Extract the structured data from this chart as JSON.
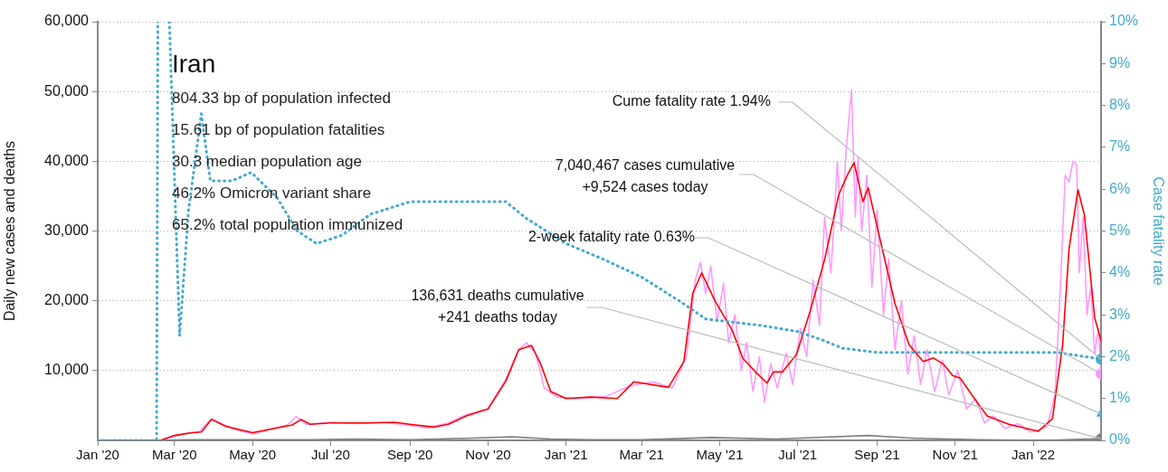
{
  "chart_data": {
    "type": "line",
    "title": "Iran",
    "xlim": [
      "2020-01-01",
      "2022-02-23"
    ],
    "xticks": [
      {
        "value": "2020-01",
        "label": "Jan '20"
      },
      {
        "value": "2020-03",
        "label": "Mar '20"
      },
      {
        "value": "2020-05",
        "label": "May '20"
      },
      {
        "value": "2020-07",
        "label": "Jul '20"
      },
      {
        "value": "2020-09",
        "label": "Sep '20"
      },
      {
        "value": "2020-11",
        "label": "Nov '20"
      },
      {
        "value": "2021-01",
        "label": "Jan '21"
      },
      {
        "value": "2021-03",
        "label": "Mar '21"
      },
      {
        "value": "2021-05",
        "label": "May '21"
      },
      {
        "value": "2021-07",
        "label": "Jul '21"
      },
      {
        "value": "2021-09",
        "label": "Sep '21"
      },
      {
        "value": "2021-11",
        "label": "Nov '21"
      },
      {
        "value": "2022-01",
        "label": "Jan '22"
      }
    ],
    "ylim": [
      0,
      60000
    ],
    "yticks": [
      {
        "value": 10000,
        "label": "10,000"
      },
      {
        "value": 20000,
        "label": "20,000"
      },
      {
        "value": 30000,
        "label": "30,000"
      },
      {
        "value": 40000,
        "label": "40,000"
      },
      {
        "value": 50000,
        "label": "50,000"
      },
      {
        "value": 60000,
        "label": "60,000"
      }
    ],
    "y2lim": [
      0,
      10
    ],
    "y2ticks": [
      {
        "value": 0,
        "label": "0%"
      },
      {
        "value": 1,
        "label": "1%"
      },
      {
        "value": 2,
        "label": "2%"
      },
      {
        "value": 3,
        "label": "3%"
      },
      {
        "value": 4,
        "label": "4%"
      },
      {
        "value": 5,
        "label": "5%"
      },
      {
        "value": 6,
        "label": "6%"
      },
      {
        "value": 7,
        "label": "7%"
      },
      {
        "value": 8,
        "label": "8%"
      },
      {
        "value": 9,
        "label": "9%"
      },
      {
        "value": 10,
        "label": "10%"
      }
    ],
    "ylabel": "Daily new cases and deaths",
    "y2label": "Case fatality rate",
    "grid": "y",
    "legend": false,
    "series": [
      {
        "type": "line",
        "color": "#ff99ff",
        "marker": "none",
        "line_style": "solid",
        "x": [
          "2020-01-01",
          "2020-02-19",
          "2020-03-01",
          "2020-03-10",
          "2020-03-20",
          "2020-03-30",
          "2020-04-08",
          "2020-04-20",
          "2020-05-02",
          "2020-05-15",
          "2020-05-28",
          "2020-06-04",
          "2020-06-12",
          "2020-07-01",
          "2020-07-20",
          "2020-08-10",
          "2020-08-25",
          "2020-09-15",
          "2020-10-01",
          "2020-10-15",
          "2020-11-01",
          "2020-11-15",
          "2020-11-25",
          "2020-12-01",
          "2020-12-08",
          "2020-12-15",
          "2020-12-25",
          "2021-01-10",
          "2021-02-01",
          "2021-02-20",
          "2021-03-10",
          "2021-03-25",
          "2021-04-05",
          "2021-04-12",
          "2021-04-16",
          "2021-04-20",
          "2021-04-24",
          "2021-04-29",
          "2021-05-04",
          "2021-05-08",
          "2021-05-13",
          "2021-05-18",
          "2021-05-22",
          "2021-05-27",
          "2021-06-01",
          "2021-06-05",
          "2021-06-10",
          "2021-06-15",
          "2021-06-22",
          "2021-06-27",
          "2021-07-03",
          "2021-07-08",
          "2021-07-13",
          "2021-07-18",
          "2021-07-22",
          "2021-07-27",
          "2021-08-01",
          "2021-08-04",
          "2021-08-08",
          "2021-08-12",
          "2021-08-15",
          "2021-08-17",
          "2021-08-20",
          "2021-08-24",
          "2021-08-28",
          "2021-09-01",
          "2021-09-06",
          "2021-09-10",
          "2021-09-15",
          "2021-09-20",
          "2021-09-25",
          "2021-09-30",
          "2021-10-05",
          "2021-10-10",
          "2021-10-16",
          "2021-10-22",
          "2021-10-27",
          "2021-11-03",
          "2021-11-10",
          "2021-11-17",
          "2021-11-24",
          "2021-12-01",
          "2021-12-10",
          "2021-12-20",
          "2021-12-30",
          "2022-01-05",
          "2022-01-12",
          "2022-01-18",
          "2022-01-22",
          "2022-01-26",
          "2022-01-29",
          "2022-02-01",
          "2022-02-04",
          "2022-02-06",
          "2022-02-09",
          "2022-02-12",
          "2022-02-15",
          "2022-02-18",
          "2022-02-21",
          "2022-02-23"
        ],
        "values": [
          0,
          0,
          600,
          1000,
          1200,
          3100,
          2300,
          1400,
          900,
          1600,
          2200,
          3400,
          2300,
          2600,
          2400,
          2600,
          2300,
          1800,
          2500,
          3700,
          4500,
          8800,
          13000,
          14000,
          12500,
          7500,
          6200,
          6000,
          6300,
          7800,
          8400,
          7500,
          12000,
          23000,
          25500,
          21000,
          25000,
          17000,
          22500,
          14000,
          18000,
          10000,
          14000,
          7000,
          12000,
          5500,
          11000,
          7500,
          12500,
          8000,
          16000,
          12000,
          23000,
          16500,
          32000,
          24000,
          40000,
          30000,
          42000,
          50200,
          32000,
          40500,
          30000,
          38000,
          22000,
          33000,
          18000,
          26000,
          13000,
          20000,
          9500,
          15000,
          8000,
          13000,
          7000,
          11500,
          6500,
          10000,
          4500,
          6000,
          2500,
          3500,
          1700,
          2400,
          1200,
          1500,
          2000,
          6500,
          21000,
          38000,
          37000,
          40000,
          39500,
          24000,
          32000,
          18000,
          22000,
          12500,
          16000,
          9524
        ]
      },
      {
        "type": "line",
        "color": "#ff0000",
        "marker": "none",
        "line_style": "solid",
        "x": [
          "2020-01-01",
          "2020-02-19",
          "2020-03-01",
          "2020-03-15",
          "2020-03-22",
          "2020-03-30",
          "2020-04-10",
          "2020-05-01",
          "2020-06-01",
          "2020-06-08",
          "2020-06-15",
          "2020-07-01",
          "2020-08-01",
          "2020-08-20",
          "2020-09-01",
          "2020-09-20",
          "2020-10-01",
          "2020-10-15",
          "2020-11-01",
          "2020-11-15",
          "2020-11-25",
          "2020-12-05",
          "2020-12-12",
          "2020-12-20",
          "2021-01-01",
          "2021-01-20",
          "2021-02-10",
          "2021-02-23",
          "2021-03-22",
          "2021-04-03",
          "2021-04-10",
          "2021-04-17",
          "2021-04-27",
          "2021-05-11",
          "2021-05-19",
          "2021-05-29",
          "2021-06-07",
          "2021-06-12",
          "2021-06-19",
          "2021-06-30",
          "2021-07-11",
          "2021-07-22",
          "2021-08-02",
          "2021-08-09",
          "2021-08-14",
          "2021-08-21",
          "2021-08-25",
          "2021-09-05",
          "2021-09-15",
          "2021-09-26",
          "2021-10-07",
          "2021-10-15",
          "2021-10-23",
          "2021-10-30",
          "2021-11-05",
          "2021-11-16",
          "2021-11-26",
          "2021-12-13",
          "2022-01-05",
          "2022-01-16",
          "2022-01-24",
          "2022-01-29",
          "2022-02-05",
          "2022-02-10",
          "2022-02-18",
          "2022-02-23"
        ],
        "values": [
          0,
          0,
          700,
          1100,
          1200,
          3000,
          2000,
          1100,
          2200,
          3000,
          2300,
          2500,
          2500,
          2600,
          2300,
          1900,
          2300,
          3500,
          4500,
          8500,
          13000,
          13600,
          11000,
          7000,
          6000,
          6200,
          6000,
          8400,
          7600,
          11300,
          21100,
          24000,
          20100,
          15700,
          11800,
          9800,
          8200,
          9800,
          9800,
          12300,
          18700,
          25900,
          35200,
          38100,
          39800,
          34200,
          36200,
          27500,
          19600,
          13700,
          11300,
          11800,
          10900,
          9300,
          8900,
          6000,
          3500,
          2300,
          1300,
          3100,
          13700,
          27500,
          35900,
          32300,
          17600,
          14300
        ]
      },
      {
        "type": "line",
        "color": "#808080",
        "marker": "none",
        "line_style": "solid",
        "x": [
          "2020-01-01",
          "2020-02-19",
          "2020-03-10",
          "2020-04-01",
          "2020-05-01",
          "2020-06-15",
          "2020-07-20",
          "2020-09-01",
          "2020-10-15",
          "2020-11-20",
          "2020-12-20",
          "2021-01-20",
          "2021-03-01",
          "2021-04-25",
          "2021-06-15",
          "2021-08-25",
          "2021-10-01",
          "2021-11-20",
          "2022-01-10",
          "2022-02-23"
        ],
        "values": [
          0,
          0,
          100,
          100,
          100,
          100,
          200,
          100,
          300,
          500,
          200,
          100,
          100,
          400,
          200,
          700,
          300,
          100,
          0,
          241
        ]
      },
      {
        "type": "line",
        "color": "#44aacc",
        "marker": "none",
        "line_style": "dotted",
        "axis": "y2",
        "x": [
          "2020-01-01",
          "2020-02-16",
          "2020-02-17",
          "2020-02-20",
          "2020-02-26",
          "2020-03-05",
          "2020-03-12",
          "2020-03-22",
          "2020-03-29",
          "2020-04-15",
          "2020-04-30",
          "2020-05-20",
          "2020-06-05",
          "2020-06-20",
          "2020-07-10",
          "2020-08-01",
          "2020-09-01",
          "2020-10-15",
          "2020-11-15",
          "2020-12-01",
          "2021-01-01",
          "2021-02-01",
          "2021-03-01",
          "2021-04-01",
          "2021-04-20",
          "2021-06-01",
          "2021-07-01",
          "2021-07-20",
          "2021-08-05",
          "2021-09-01",
          "2022-01-20",
          "2022-02-23"
        ],
        "values": [
          0,
          0,
          10,
          null,
          10,
          2.5,
          5.5,
          7.8,
          6.2,
          6.2,
          6.4,
          5.8,
          5.0,
          4.7,
          4.9,
          5.4,
          5.7,
          5.7,
          5.7,
          5.3,
          4.7,
          4.3,
          3.9,
          3.3,
          2.9,
          2.75,
          2.6,
          2.4,
          2.2,
          2.1,
          2.1,
          1.94
        ]
      },
      {
        "type": "scatter",
        "color": "#ff99ff",
        "marker": "circle",
        "x": [
          "2022-02-23"
        ],
        "values": [
          9524
        ]
      },
      {
        "type": "scatter",
        "color": "#808080",
        "marker": "circle",
        "x": [
          "2022-02-23"
        ],
        "values": [
          241
        ]
      },
      {
        "type": "scatter",
        "color": "#44aacc",
        "marker": "circle",
        "axis": "y2",
        "x": [
          "2022-02-23"
        ],
        "values": [
          1.94
        ]
      },
      {
        "type": "scatter",
        "color": "#44aacc",
        "marker": "triangle",
        "axis": "y2",
        "x": [
          "2022-02-23"
        ],
        "values": [
          0.63
        ]
      }
    ],
    "annotations": [
      "804.33 bp of population infected",
      "15.61 bp of population fatalities",
      "30.3 median population age",
      "46.2% Omicron variant share",
      "65.2% total population immunized",
      "Cume fatality rate 1.94%",
      "7,040,467 cases cumulative\n+9,524 cases today",
      "2-week fatality rate 0.63%",
      "136,631 deaths cumulative\n+241 deaths today"
    ]
  }
}
